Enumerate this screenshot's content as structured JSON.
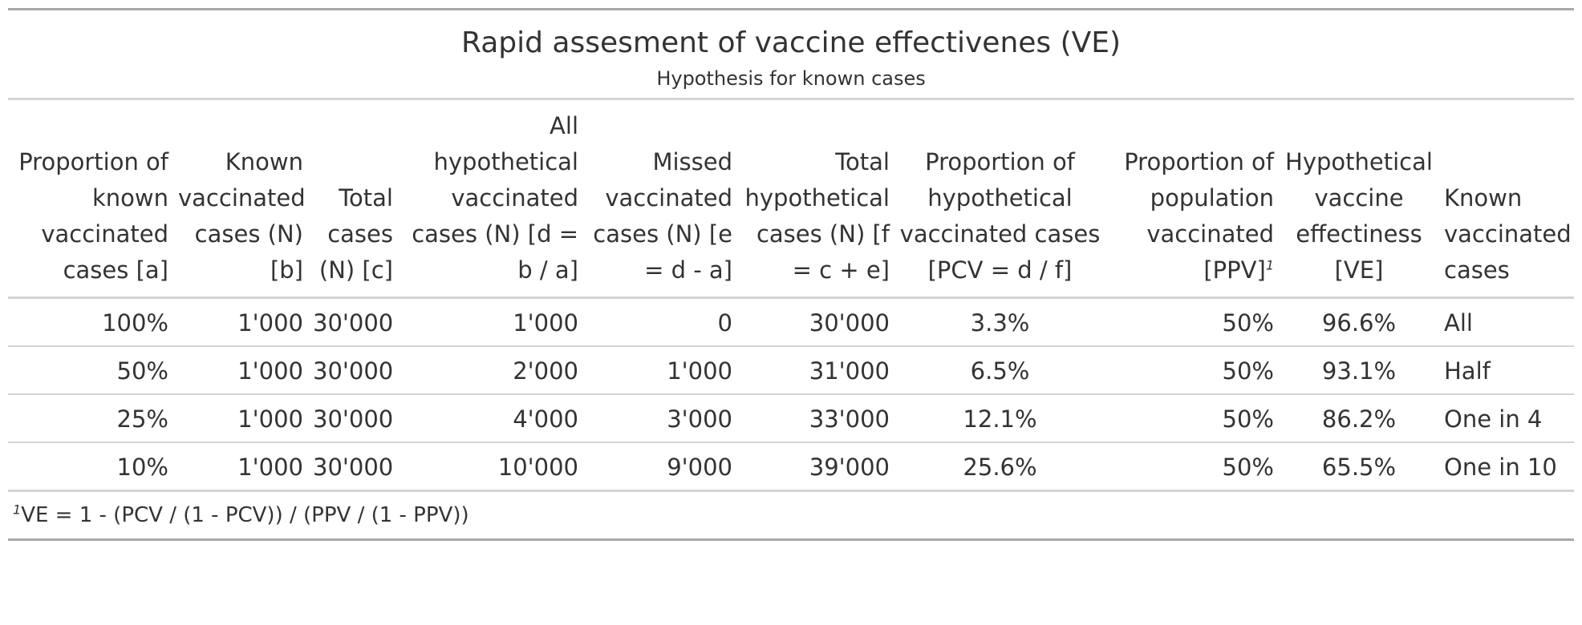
{
  "title": "Rapid assesment of vaccine effectivenes (VE)",
  "subtitle": "Hypothesis for known cases",
  "columns": [
    {
      "label": "Proportion of known vaccinated cases [a]",
      "mark": ""
    },
    {
      "label": "Known vaccinated cases (N) [b]",
      "mark": ""
    },
    {
      "label": "Total cases (N) [c]",
      "mark": ""
    },
    {
      "label": "All hypothetical vaccinated cases (N) [d = b / a]",
      "mark": ""
    },
    {
      "label": "Missed vaccinated cases (N) [e = d - a]",
      "mark": ""
    },
    {
      "label": "Total hypothetical cases (N) [f = c + e]",
      "mark": ""
    },
    {
      "label": "Proportion of hypothetical vaccinated cases [PCV = d / f]",
      "mark": ""
    },
    {
      "label": "Proportion of population vaccinated [PPV]",
      "mark": "1"
    },
    {
      "label": "Hypothetical vaccine effectiness [VE]",
      "mark": ""
    },
    {
      "label": "Known vaccinated cases",
      "mark": ""
    }
  ],
  "rows": [
    [
      "100%",
      "1'000",
      "30'000",
      "1'000",
      "0",
      "30'000",
      "3.3%",
      "50%",
      "96.6%",
      "All"
    ],
    [
      "50%",
      "1'000",
      "30'000",
      "2'000",
      "1'000",
      "31'000",
      "6.5%",
      "50%",
      "93.1%",
      "Half"
    ],
    [
      "25%",
      "1'000",
      "30'000",
      "4'000",
      "3'000",
      "33'000",
      "12.1%",
      "50%",
      "86.2%",
      "One in 4"
    ],
    [
      "10%",
      "1'000",
      "30'000",
      "10'000",
      "9'000",
      "39'000",
      "25.6%",
      "50%",
      "65.5%",
      "One in 10"
    ]
  ],
  "footnote": {
    "mark": "1",
    "text": "VE = 1 - (PCV / (1 - PCV)) / (PPV / (1 - PPV))"
  }
}
